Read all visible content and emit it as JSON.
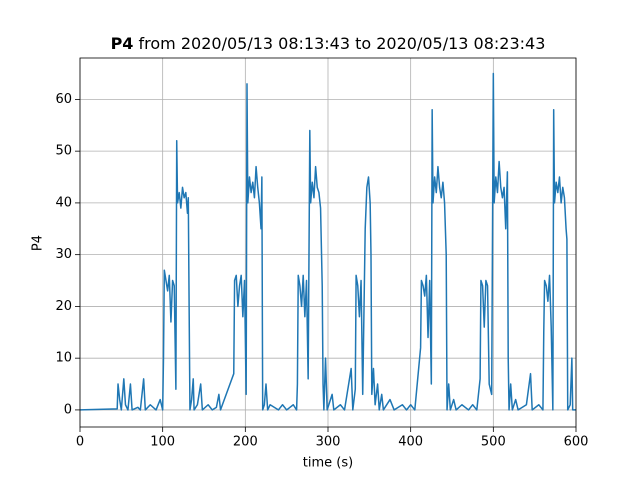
{
  "chart_data": {
    "type": "line",
    "title_name": "P4",
    "title": "from 2020/05/13 08:13:43 to 2020/05/13 08:23:43",
    "x_label": "time (s)",
    "y_label": "P4",
    "xlim": [
      0,
      600
    ],
    "ylim": [
      -3.3,
      68
    ],
    "xticks": [
      0,
      100,
      200,
      300,
      400,
      500,
      600
    ],
    "yticks": [
      0,
      10,
      20,
      30,
      40,
      50,
      60
    ],
    "grid": true,
    "x": [
      0,
      45,
      46,
      48,
      50,
      53,
      55,
      58,
      61,
      63,
      70,
      73,
      77,
      79,
      85,
      92,
      97,
      100,
      101,
      102,
      104,
      106,
      108,
      110,
      112,
      114,
      116,
      117,
      118,
      120,
      122,
      124,
      126,
      128,
      130,
      131,
      132,
      133,
      135,
      137,
      138,
      142,
      146,
      148,
      155,
      160,
      165,
      168,
      170,
      186,
      187,
      189,
      191,
      193,
      195,
      197,
      199,
      201,
      202,
      203,
      205,
      207,
      209,
      211,
      213,
      215,
      217,
      219,
      220,
      221,
      223,
      225,
      227,
      230,
      240,
      245,
      250,
      258,
      262,
      263,
      264,
      266,
      268,
      270,
      272,
      274,
      276,
      278,
      279,
      281,
      283,
      285,
      287,
      289,
      291,
      293,
      294,
      295,
      297,
      299,
      305,
      307,
      315,
      320,
      328,
      330,
      333,
      334,
      336,
      338,
      340,
      342,
      345,
      347,
      349,
      351,
      352,
      353,
      355,
      357,
      360,
      362,
      365,
      367,
      375,
      380,
      390,
      395,
      400,
      405,
      412,
      413,
      415,
      417,
      419,
      421,
      423,
      425,
      426,
      427,
      429,
      431,
      433,
      435,
      437,
      439,
      441,
      443,
      444,
      446,
      448,
      452,
      455,
      462,
      470,
      475,
      480,
      484,
      485,
      487,
      489,
      491,
      493,
      495,
      498,
      500,
      501,
      503,
      505,
      507,
      509,
      511,
      513,
      515,
      517,
      518,
      519,
      521,
      523,
      527,
      530,
      540,
      545,
      547,
      555,
      560,
      561,
      562,
      564,
      566,
      568,
      570,
      572,
      573,
      574,
      576,
      578,
      580,
      582,
      584,
      586,
      588,
      589,
      590,
      593,
      595,
      596,
      600
    ],
    "series": [
      {
        "color": "#1f77b4",
        "values": [
          0,
          0.2,
          5,
          2,
          0,
          6,
          1,
          0,
          5,
          0,
          0.5,
          0,
          6,
          0,
          1,
          0,
          2,
          0,
          10,
          27,
          25,
          23,
          26,
          17,
          25,
          24,
          4,
          52,
          40,
          42,
          39,
          43,
          41,
          42,
          38,
          41,
          20,
          0,
          2,
          6,
          0,
          1,
          5,
          0,
          1,
          0,
          0.5,
          3,
          0,
          7,
          25,
          26,
          20,
          24,
          26,
          18,
          25,
          3,
          63,
          40,
          45,
          42,
          44,
          41,
          47,
          43,
          40,
          35,
          45,
          0,
          1,
          5,
          0,
          1,
          0,
          1,
          0,
          1,
          0,
          5,
          26,
          24,
          20,
          26,
          18,
          25,
          6,
          54,
          40,
          44,
          41,
          47,
          43,
          42,
          39,
          24,
          5,
          0,
          10,
          0,
          3,
          0,
          1,
          0,
          8,
          0,
          4,
          26,
          24,
          18,
          25,
          3,
          35,
          43,
          45,
          40,
          30,
          3,
          8,
          1,
          5,
          0,
          3,
          0,
          2,
          0,
          1,
          0,
          1,
          0,
          12,
          25,
          24,
          22,
          26,
          14,
          25,
          5,
          58,
          40,
          45,
          42,
          47,
          43,
          41,
          44,
          40,
          30,
          0,
          5,
          0,
          2,
          0,
          1,
          0,
          1,
          0,
          6,
          25,
          24,
          16,
          25,
          24,
          5,
          3,
          65,
          40,
          45,
          42,
          48,
          43,
          41,
          43,
          35,
          46,
          10,
          0,
          5,
          0,
          2,
          0,
          1,
          7,
          0,
          1,
          0,
          15,
          25,
          24,
          21,
          26,
          16,
          0,
          58,
          40,
          44,
          42,
          45,
          40,
          43,
          41,
          35,
          33,
          0,
          1,
          10,
          0,
          0
        ]
      }
    ]
  }
}
